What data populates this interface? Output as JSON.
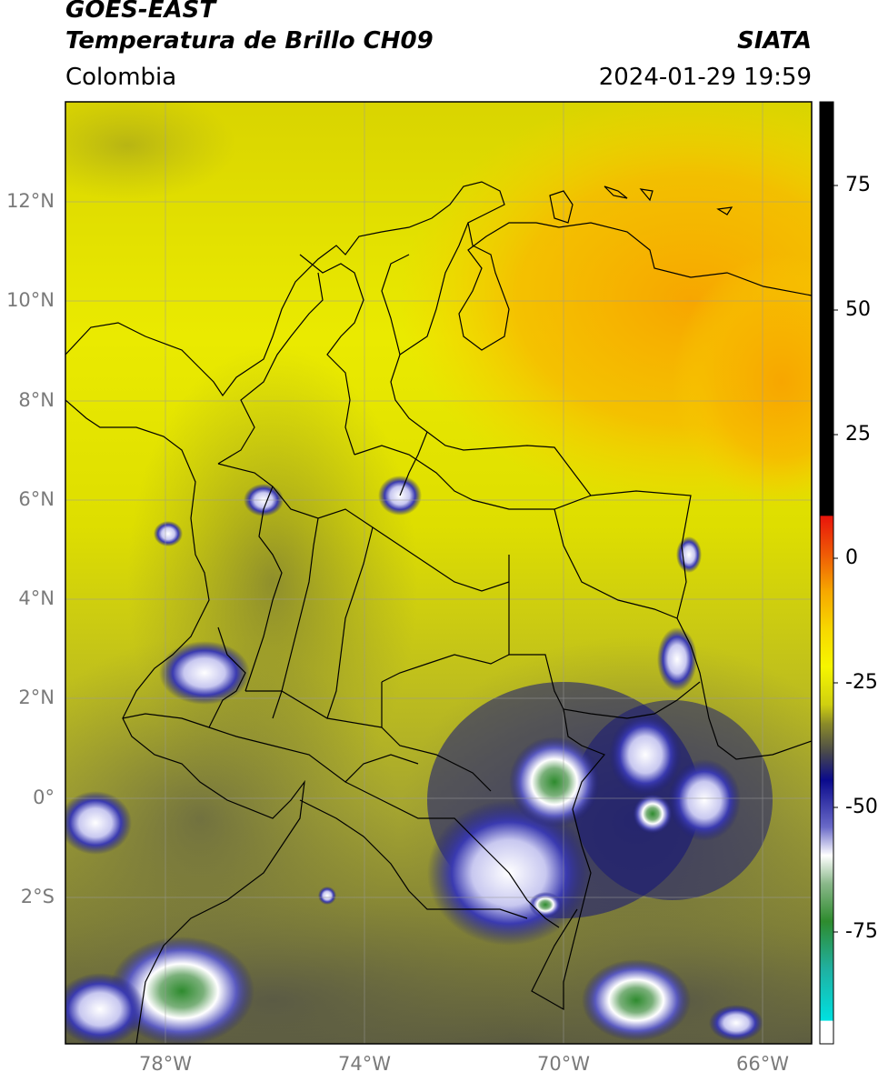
{
  "header": {
    "title_line1": "GOES-EAST",
    "title_line2": "Temperatura de Brillo CH09",
    "source": "SIATA",
    "region": "Colombia",
    "timestamp": "2024-01-29 19:59"
  },
  "map": {
    "lat_labels": [
      "12°N",
      "10°N",
      "8°N",
      "6°N",
      "4°N",
      "2°N",
      "0°",
      "2°S"
    ],
    "lon_labels": [
      "78°W",
      "74°W",
      "70°W",
      "66°W"
    ],
    "gridlines": true
  },
  "colorbar": {
    "tick_labels": [
      "75",
      "50",
      "25",
      "0",
      "-25",
      "-50",
      "-75"
    ],
    "colors": {
      "black": "#000000",
      "red": "#e8150b",
      "orange": "#f6a800",
      "yellow": "#f6f600",
      "olive": "#8c8c28",
      "gray": "#4a4a4a",
      "navy": "#0a0a8c",
      "white": "#ffffff",
      "green": "#2e8b2e",
      "cyan": "#00e0e0"
    }
  }
}
